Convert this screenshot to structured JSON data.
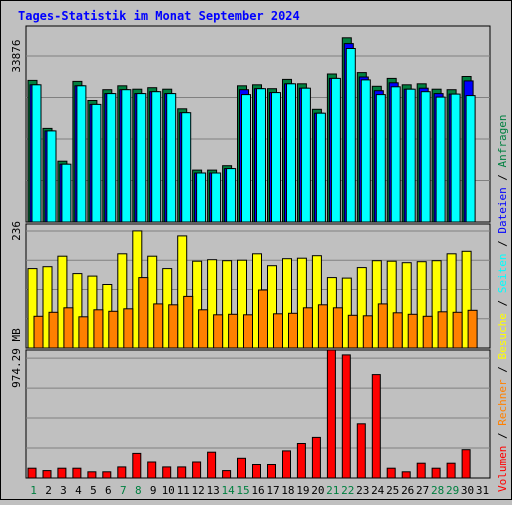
{
  "chart_data": [
    {
      "type": "bar",
      "panel": "requests-files-pages",
      "title": "Tages-Statistik im Monat September 2024",
      "x": [
        "1",
        "2",
        "3",
        "4",
        "5",
        "6",
        "7",
        "8",
        "9",
        "10",
        "11",
        "12",
        "13",
        "14",
        "15",
        "16",
        "17",
        "18",
        "19",
        "20",
        "21",
        "22",
        "23",
        "24",
        "25",
        "26",
        "27",
        "28",
        "29",
        "30",
        "31"
      ],
      "weekend_days": [
        "1",
        "7",
        "8",
        "14",
        "15",
        "21",
        "22",
        "28",
        "29"
      ],
      "ytick_label": "33876",
      "ytick_value": 33876,
      "ylim": [
        0,
        40000
      ],
      "grid": true,
      "series": [
        {
          "name": "Anfragen",
          "color": "#008040",
          "values": [
            28900,
            19100,
            12400,
            28700,
            24800,
            27000,
            27800,
            27100,
            27400,
            27100,
            23100,
            10600,
            10600,
            11500,
            27800,
            28000,
            27200,
            29100,
            28200,
            23000,
            30200,
            37600,
            30500,
            27700,
            29300,
            28000,
            28200,
            27100,
            27000,
            29700,
            0
          ]
        },
        {
          "name": "Dateien",
          "color": "#0000ff",
          "values": [
            28000,
            18600,
            11800,
            27800,
            24000,
            26200,
            27000,
            26200,
            26600,
            26200,
            22300,
            10000,
            10000,
            10900,
            27000,
            27200,
            26400,
            28200,
            27300,
            22200,
            29300,
            36400,
            29600,
            26800,
            28400,
            27100,
            27300,
            26200,
            26100,
            28800,
            0
          ]
        },
        {
          "name": "Seiten",
          "color": "#00ffff",
          "values": [
            28000,
            18600,
            11800,
            27800,
            24000,
            26200,
            27000,
            26200,
            26600,
            26200,
            22300,
            10000,
            10000,
            10900,
            26000,
            27200,
            26400,
            28200,
            27300,
            22200,
            29300,
            35400,
            29000,
            26000,
            27600,
            27100,
            26600,
            25500,
            26100,
            25800,
            0
          ]
        }
      ]
    },
    {
      "type": "bar",
      "panel": "visits-hosts",
      "x": [
        "1",
        "2",
        "3",
        "4",
        "5",
        "6",
        "7",
        "8",
        "9",
        "10",
        "11",
        "12",
        "13",
        "14",
        "15",
        "16",
        "17",
        "18",
        "19",
        "20",
        "21",
        "22",
        "23",
        "24",
        "25",
        "26",
        "27",
        "28",
        "29",
        "30",
        "31"
      ],
      "ytick_label": "236",
      "ytick_value": 236,
      "ylim": [
        0,
        250
      ],
      "grid": true,
      "series": [
        {
          "name": "Besuche",
          "color": "#ffff00",
          "values": [
            160,
            164,
            185,
            150,
            145,
            128,
            190,
            236,
            185,
            160,
            226,
            175,
            178,
            176,
            177,
            190,
            166,
            180,
            181,
            186,
            142,
            141,
            162,
            176,
            175,
            172,
            174,
            176,
            190,
            195,
            0
          ]
        },
        {
          "name": "Rechner",
          "color": "#ff8000",
          "values": [
            64,
            72,
            81,
            63,
            77,
            74,
            79,
            142,
            89,
            87,
            104,
            77,
            67,
            68,
            67,
            117,
            69,
            70,
            81,
            87,
            81,
            66,
            65,
            89,
            71,
            68,
            64,
            73,
            72,
            76,
            0
          ]
        }
      ]
    },
    {
      "type": "bar",
      "panel": "volume",
      "x": [
        "1",
        "2",
        "3",
        "4",
        "5",
        "6",
        "7",
        "8",
        "9",
        "10",
        "11",
        "12",
        "13",
        "14",
        "15",
        "16",
        "17",
        "18",
        "19",
        "20",
        "21",
        "22",
        "23",
        "24",
        "25",
        "26",
        "27",
        "28",
        "29",
        "30",
        "31"
      ],
      "ytick_label": "974.29 MB",
      "ytick_value": 974.29,
      "yunit": "MB",
      "ylim": [
        0,
        1040
      ],
      "grid": true,
      "series": [
        {
          "name": "Volumen",
          "color": "#ff0000",
          "values": [
            80,
            60,
            80,
            80,
            50,
            50,
            90,
            200,
            130,
            90,
            90,
            130,
            210,
            60,
            160,
            110,
            110,
            220,
            280,
            330,
            1040,
            1000,
            440,
            840,
            80,
            50,
            120,
            80,
            120,
            230,
            0
          ]
        }
      ]
    }
  ],
  "legend": {
    "items": [
      {
        "label": "Volumen",
        "color": "#ff0000"
      },
      {
        "label": "Rechner",
        "color": "#ff8000"
      },
      {
        "label": "Besuche",
        "color": "#ffff00"
      },
      {
        "label": "Seiten",
        "color": "#00ffff"
      },
      {
        "label": "Dateien",
        "color": "#0000ff"
      },
      {
        "label": "Anfragen",
        "color": "#008040"
      }
    ],
    "separator": " / "
  },
  "colors": {
    "background": "#c0c0c0",
    "title": "#0000ff",
    "weekend_label": "#008040",
    "weekday_label": "#000000"
  }
}
